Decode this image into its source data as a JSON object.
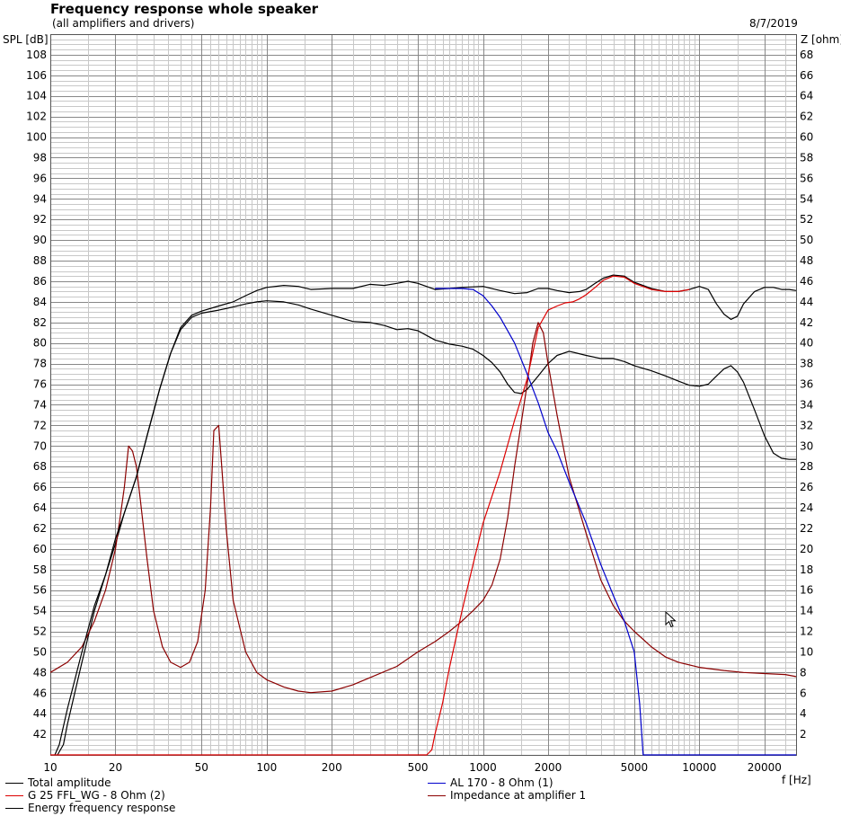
{
  "header": {
    "title": "Frequency response whole speaker",
    "subtitle": "(all amplifiers and drivers)",
    "date": "8/7/2019"
  },
  "colors": {
    "total_amplitude": "#000000",
    "g25": "#dd0000",
    "al170": "#0000cc",
    "impedance": "#8b0000",
    "energy": "#000000",
    "grid_major": "#888888",
    "grid_minor": "#c8c8c8",
    "background": "#ffffff"
  },
  "chart_data": {
    "type": "line",
    "title": "Frequency response whole speaker",
    "subtitle": "(all amplifiers and drivers)",
    "xlabel": "f [Hz]",
    "ylabel": "SPL [dB]",
    "y2label": "Z [ohm]",
    "xscale": "log",
    "xlim": [
      10,
      28000
    ],
    "ylim": [
      40,
      110
    ],
    "y2lim": [
      0,
      70
    ],
    "grid": true,
    "legend": "bottom",
    "x_ticks": [
      "10",
      "20",
      "50",
      "100",
      "200",
      "500",
      "1000",
      "2000",
      "5000",
      "10000",
      "20000"
    ],
    "y_ticks": [
      "42",
      "44",
      "46",
      "48",
      "50",
      "52",
      "54",
      "56",
      "58",
      "60",
      "62",
      "64",
      "66",
      "68",
      "70",
      "72",
      "74",
      "76",
      "78",
      "80",
      "82",
      "84",
      "86",
      "88",
      "90",
      "92",
      "94",
      "96",
      "98",
      "100",
      "102",
      "104",
      "106",
      "108"
    ],
    "y2_ticks": [
      "2",
      "4",
      "6",
      "8",
      "10",
      "12",
      "14",
      "16",
      "18",
      "20",
      "22",
      "24",
      "26",
      "28",
      "30",
      "32",
      "34",
      "36",
      "38",
      "40",
      "42",
      "44",
      "46",
      "48",
      "50",
      "52",
      "54",
      "56",
      "58",
      "60",
      "62",
      "64",
      "66",
      "68"
    ],
    "series": [
      {
        "name": "Total amplitude",
        "axis": "spl",
        "points": [
          [
            10.5,
            40
          ],
          [
            11,
            41
          ],
          [
            12,
            44.5
          ],
          [
            14,
            50
          ],
          [
            16,
            54.5
          ],
          [
            18,
            57.5
          ],
          [
            20,
            61
          ],
          [
            22,
            63.5
          ],
          [
            25,
            67
          ],
          [
            28,
            71
          ],
          [
            32,
            75.5
          ],
          [
            36,
            79
          ],
          [
            40,
            81.5
          ],
          [
            45,
            82.7
          ],
          [
            50,
            83.1
          ],
          [
            60,
            83.6
          ],
          [
            70,
            84
          ],
          [
            80,
            84.6
          ],
          [
            90,
            85.1
          ],
          [
            100,
            85.4
          ],
          [
            120,
            85.6
          ],
          [
            140,
            85.5
          ],
          [
            160,
            85.2
          ],
          [
            200,
            85.3
          ],
          [
            250,
            85.3
          ],
          [
            300,
            85.7
          ],
          [
            350,
            85.6
          ],
          [
            400,
            85.8
          ],
          [
            450,
            86
          ],
          [
            500,
            85.8
          ],
          [
            600,
            85.2
          ],
          [
            700,
            85.3
          ],
          [
            800,
            85.4
          ],
          [
            1000,
            85.5
          ],
          [
            1200,
            85.1
          ],
          [
            1400,
            84.8
          ],
          [
            1600,
            84.9
          ],
          [
            1800,
            85.3
          ],
          [
            2000,
            85.3
          ],
          [
            2200,
            85.1
          ],
          [
            2500,
            84.9
          ],
          [
            2800,
            85
          ],
          [
            3000,
            85.2
          ],
          [
            3300,
            85.8
          ],
          [
            3600,
            86.3
          ],
          [
            4000,
            86.6
          ],
          [
            4500,
            86.5
          ],
          [
            5000,
            85.9
          ],
          [
            6000,
            85.3
          ],
          [
            7000,
            85
          ],
          [
            8000,
            85
          ],
          [
            9000,
            85.2
          ],
          [
            10000,
            85.5
          ],
          [
            11000,
            85.2
          ],
          [
            12000,
            83.8
          ],
          [
            13000,
            82.8
          ],
          [
            14000,
            82.3
          ],
          [
            15000,
            82.6
          ],
          [
            16000,
            83.8
          ],
          [
            18000,
            85
          ],
          [
            20000,
            85.4
          ],
          [
            22000,
            85.4
          ],
          [
            24000,
            85.2
          ],
          [
            26000,
            85.2
          ],
          [
            28000,
            85.1
          ]
        ]
      },
      {
        "name": "G 25 FFL_WG - 8 Ohm (2)",
        "axis": "spl",
        "points": [
          [
            10,
            40
          ],
          [
            550,
            40
          ],
          [
            580,
            40.5
          ],
          [
            600,
            42
          ],
          [
            650,
            45
          ],
          [
            700,
            48.5
          ],
          [
            800,
            54
          ],
          [
            900,
            58.5
          ],
          [
            1000,
            62.5
          ],
          [
            1200,
            67.5
          ],
          [
            1400,
            72.5
          ],
          [
            1600,
            76.5
          ],
          [
            1800,
            81.5
          ],
          [
            2000,
            83.2
          ],
          [
            2200,
            83.6
          ],
          [
            2400,
            83.9
          ],
          [
            2600,
            84
          ],
          [
            2800,
            84.3
          ],
          [
            3000,
            84.7
          ],
          [
            3300,
            85.4
          ],
          [
            3600,
            86.1
          ],
          [
            4000,
            86.5
          ],
          [
            4500,
            86.4
          ],
          [
            5000,
            85.8
          ],
          [
            6000,
            85.2
          ],
          [
            7000,
            85
          ],
          [
            8000,
            85
          ],
          [
            9000,
            85.2
          ]
        ]
      },
      {
        "name": "AL 170 - 8 Ohm (1)",
        "axis": "spl",
        "points": [
          [
            600,
            85.3
          ],
          [
            700,
            85.3
          ],
          [
            800,
            85.3
          ],
          [
            900,
            85.2
          ],
          [
            1000,
            84.6
          ],
          [
            1100,
            83.6
          ],
          [
            1200,
            82.5
          ],
          [
            1400,
            80
          ],
          [
            1600,
            77
          ],
          [
            1800,
            74.2
          ],
          [
            2000,
            71.3
          ],
          [
            2200,
            69.5
          ],
          [
            2500,
            66.5
          ],
          [
            3000,
            62.5
          ],
          [
            3500,
            58.5
          ],
          [
            4000,
            55.5
          ],
          [
            4500,
            53
          ],
          [
            5000,
            50
          ],
          [
            5300,
            45
          ],
          [
            5500,
            40
          ],
          [
            10000,
            40
          ],
          [
            28000,
            40
          ]
        ]
      },
      {
        "name": "Impedance at amplifier 1",
        "axis": "z",
        "points": [
          [
            10,
            8
          ],
          [
            12,
            9
          ],
          [
            14,
            10.5
          ],
          [
            16,
            13
          ],
          [
            18,
            16
          ],
          [
            20,
            20
          ],
          [
            21,
            23
          ],
          [
            22,
            26
          ],
          [
            23,
            30
          ],
          [
            24,
            29.5
          ],
          [
            25,
            28
          ],
          [
            26,
            25
          ],
          [
            28,
            19
          ],
          [
            30,
            14
          ],
          [
            33,
            10.5
          ],
          [
            36,
            9
          ],
          [
            40,
            8.5
          ],
          [
            44,
            9
          ],
          [
            48,
            11
          ],
          [
            52,
            16
          ],
          [
            55,
            24
          ],
          [
            57,
            31.5
          ],
          [
            60,
            32
          ],
          [
            62,
            28
          ],
          [
            65,
            22
          ],
          [
            70,
            15
          ],
          [
            80,
            10
          ],
          [
            90,
            8
          ],
          [
            100,
            7.3
          ],
          [
            120,
            6.6
          ],
          [
            140,
            6.2
          ],
          [
            160,
            6.05
          ],
          [
            200,
            6.2
          ],
          [
            250,
            6.8
          ],
          [
            300,
            7.5
          ],
          [
            400,
            8.6
          ],
          [
            500,
            10
          ],
          [
            600,
            11
          ],
          [
            700,
            12
          ],
          [
            800,
            13
          ],
          [
            900,
            14
          ],
          [
            1000,
            15
          ],
          [
            1100,
            16.5
          ],
          [
            1200,
            19
          ],
          [
            1300,
            23
          ],
          [
            1400,
            28
          ],
          [
            1600,
            36
          ],
          [
            1700,
            40
          ],
          [
            1800,
            42
          ],
          [
            1900,
            41
          ],
          [
            2000,
            38
          ],
          [
            2200,
            33
          ],
          [
            2500,
            27
          ],
          [
            3000,
            21.5
          ],
          [
            3500,
            17
          ],
          [
            4000,
            14.5
          ],
          [
            4500,
            13
          ],
          [
            5000,
            12
          ],
          [
            6000,
            10.5
          ],
          [
            7000,
            9.5
          ],
          [
            8000,
            9
          ],
          [
            10000,
            8.5
          ],
          [
            13000,
            8.2
          ],
          [
            16000,
            8
          ],
          [
            20000,
            7.9
          ],
          [
            25000,
            7.8
          ],
          [
            28000,
            7.6
          ]
        ]
      },
      {
        "name": "Energy frequency response",
        "axis": "spl",
        "points": [
          [
            10.8,
            40
          ],
          [
            11.5,
            41
          ],
          [
            12,
            43
          ],
          [
            14,
            49
          ],
          [
            16,
            54
          ],
          [
            18,
            57.5
          ],
          [
            20,
            60.5
          ],
          [
            22,
            63.5
          ],
          [
            25,
            67
          ],
          [
            28,
            71
          ],
          [
            32,
            75.5
          ],
          [
            36,
            79
          ],
          [
            40,
            81.3
          ],
          [
            45,
            82.5
          ],
          [
            50,
            82.9
          ],
          [
            60,
            83.2
          ],
          [
            70,
            83.5
          ],
          [
            80,
            83.8
          ],
          [
            90,
            84
          ],
          [
            100,
            84.1
          ],
          [
            120,
            84
          ],
          [
            140,
            83.7
          ],
          [
            160,
            83.3
          ],
          [
            200,
            82.7
          ],
          [
            250,
            82.1
          ],
          [
            300,
            82
          ],
          [
            350,
            81.7
          ],
          [
            400,
            81.3
          ],
          [
            450,
            81.4
          ],
          [
            500,
            81.2
          ],
          [
            600,
            80.3
          ],
          [
            700,
            79.9
          ],
          [
            800,
            79.7
          ],
          [
            900,
            79.4
          ],
          [
            1000,
            78.8
          ],
          [
            1100,
            78.1
          ],
          [
            1200,
            77.2
          ],
          [
            1300,
            76
          ],
          [
            1400,
            75.2
          ],
          [
            1500,
            75.1
          ],
          [
            1600,
            75.5
          ],
          [
            1800,
            76.8
          ],
          [
            2000,
            78
          ],
          [
            2200,
            78.8
          ],
          [
            2500,
            79.2
          ],
          [
            3000,
            78.8
          ],
          [
            3500,
            78.5
          ],
          [
            4000,
            78.5
          ],
          [
            4500,
            78.2
          ],
          [
            5000,
            77.8
          ],
          [
            6000,
            77.3
          ],
          [
            7000,
            76.8
          ],
          [
            8000,
            76.3
          ],
          [
            9000,
            75.9
          ],
          [
            10000,
            75.8
          ],
          [
            11000,
            76
          ],
          [
            12000,
            76.8
          ],
          [
            13000,
            77.5
          ],
          [
            14000,
            77.8
          ],
          [
            15000,
            77.2
          ],
          [
            16000,
            76.2
          ],
          [
            18000,
            73.5
          ],
          [
            20000,
            71
          ],
          [
            22000,
            69.3
          ],
          [
            24000,
            68.8
          ],
          [
            26000,
            68.7
          ],
          [
            28000,
            68.7
          ]
        ]
      }
    ]
  },
  "legend": [
    {
      "label": "Total amplitude",
      "color": "#000000"
    },
    {
      "label": "AL 170 - 8 Ohm (1)",
      "color": "#0000cc"
    },
    {
      "label": "G 25 FFL_WG - 8 Ohm (2)",
      "color": "#dd0000"
    },
    {
      "label": "Impedance at amplifier 1",
      "color": "#8b0000"
    },
    {
      "label": "Energy frequency response",
      "color": "#000000"
    }
  ]
}
